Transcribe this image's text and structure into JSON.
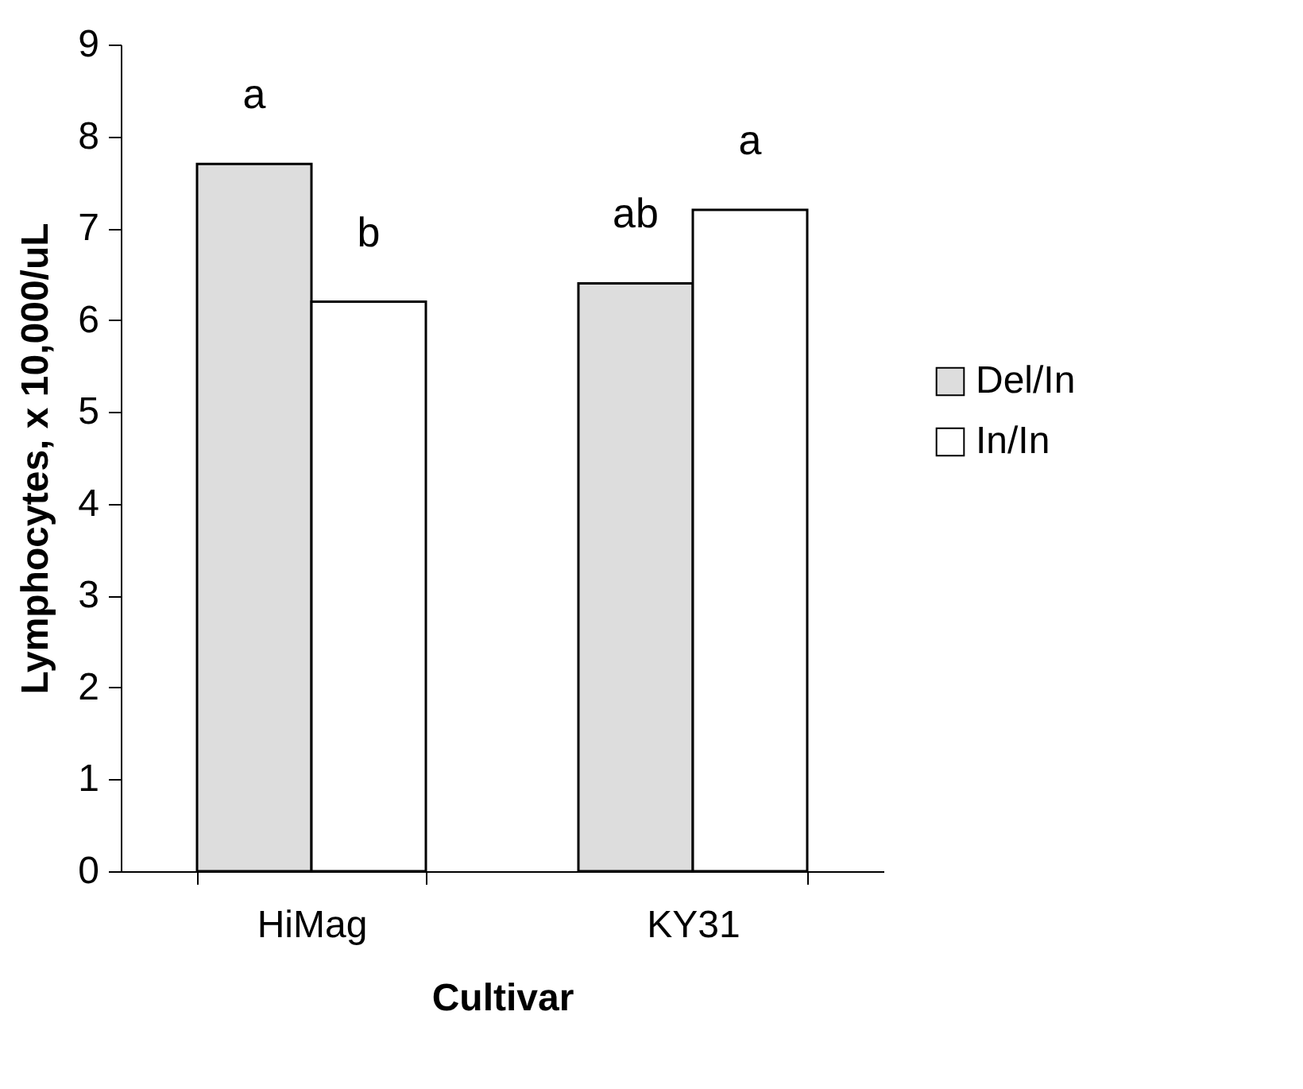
{
  "chart_data": {
    "type": "bar",
    "xlabel": "Cultivar",
    "ylabel": "Lymphocytes, x 10,000/uL",
    "categories": [
      "HiMag",
      "KY31"
    ],
    "series": [
      {
        "name": "Del/In",
        "color": "#dddddd",
        "values": [
          7.7,
          6.4
        ]
      },
      {
        "name": "In/In",
        "color": "#ffffff",
        "values": [
          6.2,
          7.2
        ]
      }
    ],
    "ylim": [
      0,
      9
    ],
    "yticks": [
      0,
      1,
      2,
      3,
      4,
      5,
      6,
      7,
      8,
      9
    ],
    "grid": false,
    "legend": "right",
    "annotations": [
      {
        "text": "a",
        "x": "HiMag",
        "y": 7.7
      },
      {
        "text": "b",
        "x": "HiMag",
        "y": 6.2
      },
      {
        "text": "ab",
        "x": "KY31",
        "y": 6.4
      },
      {
        "text": "a",
        "x": "KY31",
        "y": 7.2
      }
    ]
  }
}
